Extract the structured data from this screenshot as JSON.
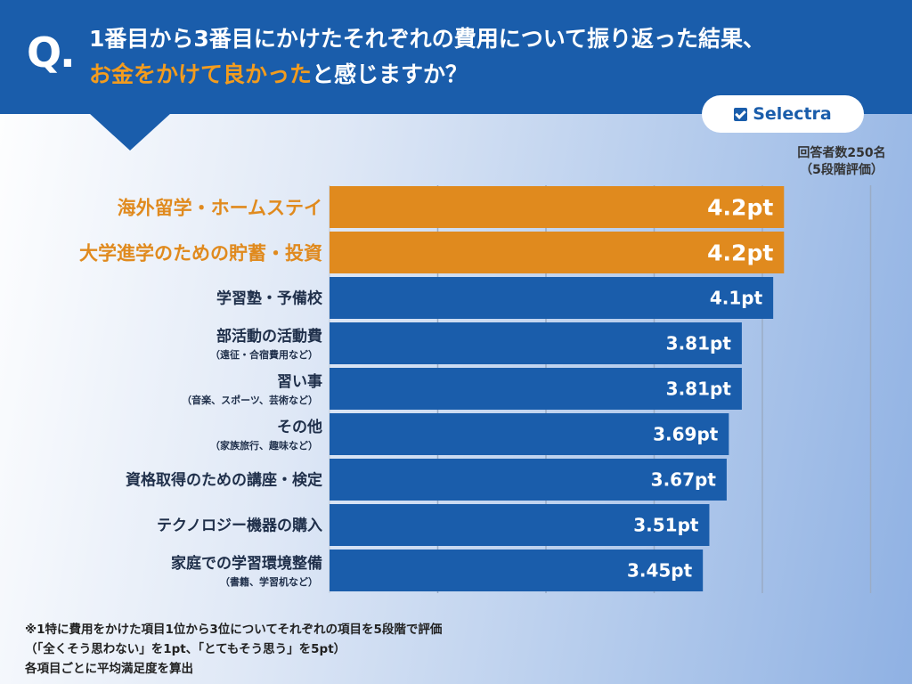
{
  "question": {
    "mark": "Q.",
    "line1": "1番目から3番目にかけたそれぞれの費用について振り返った結果、",
    "line2_highlight": "お金をかけて良かった",
    "line2_rest": "と感じますか？"
  },
  "brand": {
    "name": "Selectra",
    "icon": "checkbox-icon"
  },
  "respondents": {
    "line1": "回答者数250名",
    "line2": "（5段階評価）"
  },
  "colors": {
    "highlight": "#e08a1e",
    "bar": "#1a5dab",
    "highlight_label": "#e08a1e",
    "label": "#1f2f4a"
  },
  "chart_data": {
    "type": "bar",
    "orientation": "horizontal",
    "xlim": [
      0,
      5
    ],
    "grid": "vertical",
    "value_suffix": "pt",
    "categories": [
      {
        "label": "海外留学・ホームステイ",
        "sub": "",
        "value": 4.2,
        "value_label": "4.2pt",
        "highlight": true
      },
      {
        "label": "大学進学のための貯蓄・投資",
        "sub": "",
        "value": 4.2,
        "value_label": "4.2pt",
        "highlight": true
      },
      {
        "label": "学習塾・予備校",
        "sub": "",
        "value": 4.1,
        "value_label": "4.1pt",
        "highlight": false
      },
      {
        "label": "部活動の活動費",
        "sub": "（遠征・合宿費用など）",
        "value": 3.81,
        "value_label": "3.81pt",
        "highlight": false
      },
      {
        "label": "習い事",
        "sub": "（音楽、スポーツ、芸術など）",
        "value": 3.81,
        "value_label": "3.81pt",
        "highlight": false
      },
      {
        "label": "その他",
        "sub": "（家族旅行、趣味など）",
        "value": 3.69,
        "value_label": "3.69pt",
        "highlight": false
      },
      {
        "label": "資格取得のための講座・検定",
        "sub": "",
        "value": 3.67,
        "value_label": "3.67pt",
        "highlight": false
      },
      {
        "label": "テクノロジー機器の購入",
        "sub": "",
        "value": 3.51,
        "value_label": "3.51pt",
        "highlight": false
      },
      {
        "label": "家庭での学習環境整備",
        "sub": "（書籍、学習机など）",
        "value": 3.45,
        "value_label": "3.45pt",
        "highlight": false
      }
    ]
  },
  "footnote": {
    "line1": "※1特に費用をかけた項目1位から3位についてそれぞれの項目を5段階で評価",
    "line2": "（「全くそう思わない」を1pt、「とてもそう思う」を5pt）",
    "line3": "各項目ごとに平均満足度を算出"
  }
}
